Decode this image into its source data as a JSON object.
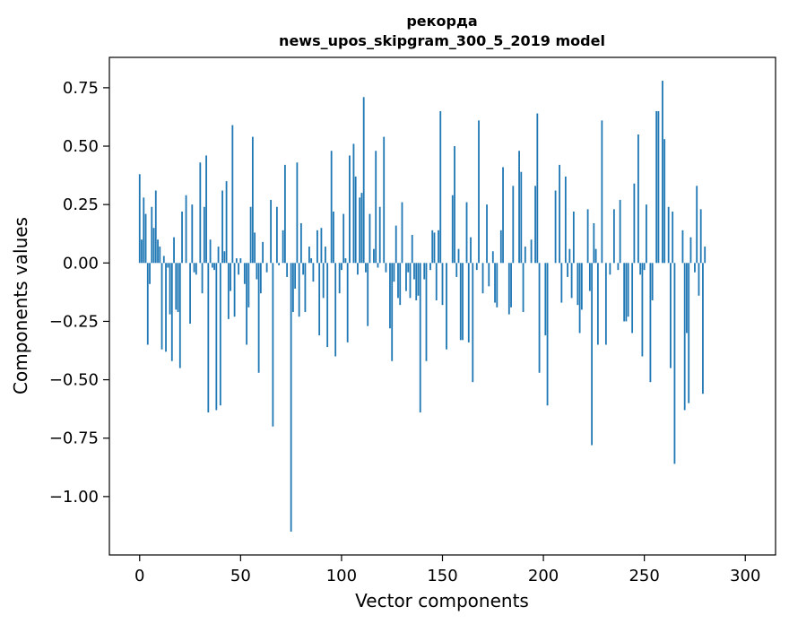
{
  "chart_data": {
    "type": "bar",
    "title": "рекорда",
    "subtitle": "news_upos_skipgram_300_5_2019 model",
    "xlabel": "Vector components",
    "ylabel": "Components values",
    "xlim": [
      -15,
      315
    ],
    "ylim": [
      -1.25,
      0.88
    ],
    "x_ticks": [
      0,
      50,
      100,
      150,
      200,
      250,
      300
    ],
    "x_tick_labels": [
      "0",
      "50",
      "100",
      "150",
      "200",
      "250",
      "300"
    ],
    "y_ticks": [
      0.75,
      0.5,
      0.25,
      0.0,
      -0.25,
      -0.5,
      -0.75,
      -1.0
    ],
    "y_tick_labels": [
      "0.75",
      "0.50",
      "0.25",
      "0.00",
      "−0.25",
      "−0.50",
      "−0.75",
      "−1.00"
    ],
    "grid": false,
    "bar_color": "#1f77b4",
    "values": [
      0.38,
      0.1,
      0.28,
      0.21,
      -0.35,
      -0.09,
      0.24,
      0.15,
      0.31,
      0.1,
      0.07,
      -0.37,
      0.03,
      -0.38,
      -0.02,
      -0.22,
      -0.42,
      0.11,
      -0.2,
      -0.21,
      -0.45,
      0.22,
      0.0,
      0.29,
      0.0,
      -0.26,
      0.25,
      -0.04,
      -0.05,
      0.0,
      0.43,
      -0.13,
      0.24,
      0.46,
      -0.64,
      0.1,
      -0.02,
      -0.03,
      -0.63,
      0.07,
      -0.61,
      0.31,
      0.05,
      0.35,
      -0.24,
      -0.12,
      0.59,
      -0.23,
      0.02,
      -0.05,
      0.02,
      0.0,
      -0.09,
      -0.35,
      -0.19,
      0.24,
      0.54,
      0.13,
      -0.07,
      -0.47,
      -0.13,
      0.09,
      0.0,
      -0.04,
      0.0,
      0.27,
      -0.7,
      0.0,
      0.24,
      -0.01,
      0.0,
      0.14,
      0.42,
      -0.06,
      0.0,
      -1.15,
      -0.21,
      -0.11,
      0.43,
      -0.23,
      0.17,
      -0.05,
      -0.21,
      0.0,
      0.07,
      0.02,
      -0.08,
      0.0,
      0.14,
      -0.31,
      0.15,
      -0.15,
      0.07,
      -0.36,
      0.0,
      0.48,
      0.22,
      -0.4,
      0.0,
      -0.13,
      -0.03,
      0.21,
      0.02,
      -0.34,
      0.46,
      0.0,
      0.51,
      0.37,
      -0.05,
      0.28,
      0.3,
      0.71,
      -0.04,
      -0.27,
      0.21,
      0.0,
      0.06,
      0.48,
      -0.02,
      0.24,
      0.0,
      0.54,
      -0.04,
      0.0,
      -0.28,
      -0.42,
      -0.08,
      0.16,
      -0.15,
      -0.18,
      0.26,
      0.0,
      -0.12,
      -0.04,
      -0.15,
      0.12,
      -0.07,
      -0.16,
      -0.14,
      -0.64,
      0.0,
      -0.07,
      -0.42,
      0.0,
      -0.03,
      0.14,
      0.13,
      -0.16,
      0.14,
      0.65,
      -0.18,
      0.0,
      -0.37,
      0.0,
      0.0,
      0.29,
      0.5,
      -0.06,
      0.06,
      -0.33,
      -0.33,
      0.0,
      0.26,
      -0.34,
      0.11,
      -0.51,
      0.0,
      -0.03,
      0.61,
      0.0,
      -0.13,
      0.0,
      0.25,
      -0.1,
      0.0,
      0.05,
      -0.17,
      -0.19,
      0.0,
      0.14,
      0.41,
      0.0,
      0.0,
      -0.22,
      -0.19,
      0.33,
      0.0,
      0.0,
      0.48,
      0.39,
      -0.21,
      0.07,
      0.0,
      0.0,
      0.1,
      0.0,
      0.33,
      0.64,
      -0.47,
      0.0,
      0.0,
      -0.31,
      -0.61,
      0.0,
      0.0,
      0.0,
      0.31,
      0.0,
      0.42,
      -0.17,
      0.0,
      0.37,
      -0.06,
      0.06,
      -0.15,
      0.22,
      0.0,
      -0.18,
      -0.3,
      -0.2,
      0.0,
      0.0,
      0.23,
      -0.12,
      -0.78,
      0.17,
      0.06,
      -0.35,
      0.0,
      0.61,
      0.0,
      -0.35,
      0.0,
      -0.05,
      0.0,
      0.23,
      0.0,
      -0.03,
      0.27,
      0.0,
      -0.25,
      -0.25,
      -0.23,
      0.0,
      -0.3,
      0.34,
      0.0,
      0.55,
      -0.05,
      -0.4,
      -0.03,
      0.25,
      0.0,
      -0.51,
      -0.16,
      0.0,
      0.65,
      0.65,
      0.0,
      0.78,
      0.53,
      0.0,
      0.24,
      -0.45,
      0.22,
      -0.86,
      0.0,
      0.0,
      0.0,
      0.14,
      -0.63,
      -0.3,
      -0.6,
      0.11,
      0.0,
      -0.04,
      0.33,
      -0.14,
      0.23,
      -0.56,
      0.07
    ]
  }
}
